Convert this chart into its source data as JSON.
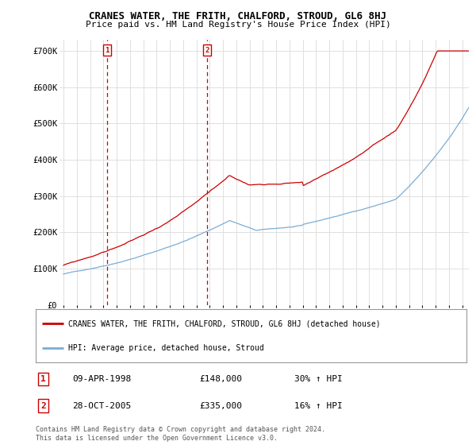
{
  "title": "CRANES WATER, THE FRITH, CHALFORD, STROUD, GL6 8HJ",
  "subtitle": "Price paid vs. HM Land Registry's House Price Index (HPI)",
  "ylabel_ticks": [
    "£0",
    "£100K",
    "£200K",
    "£300K",
    "£400K",
    "£500K",
    "£600K",
    "£700K"
  ],
  "ytick_values": [
    0,
    100000,
    200000,
    300000,
    400000,
    500000,
    600000,
    700000
  ],
  "ylim": [
    0,
    730000
  ],
  "xlim_start": 1994.7,
  "xlim_end": 2025.5,
  "purchase1_x": 1998.27,
  "purchase1_y": 148000,
  "purchase2_x": 2005.82,
  "purchase2_y": 335000,
  "legend_label_red": "CRANES WATER, THE FRITH, CHALFORD, STROUD, GL6 8HJ (detached house)",
  "legend_label_blue": "HPI: Average price, detached house, Stroud",
  "marker1_label": "1",
  "marker1_date": "09-APR-1998",
  "marker1_price": "£148,000",
  "marker1_hpi": "30% ↑ HPI",
  "marker2_label": "2",
  "marker2_date": "28-OCT-2005",
  "marker2_price": "£335,000",
  "marker2_hpi": "16% ↑ HPI",
  "footer_line1": "Contains HM Land Registry data © Crown copyright and database right 2024.",
  "footer_line2": "This data is licensed under the Open Government Licence v3.0.",
  "red_color": "#cc0000",
  "blue_color": "#7aadd4",
  "grid_color": "#e0e0e0",
  "background_color": "#ffffff"
}
